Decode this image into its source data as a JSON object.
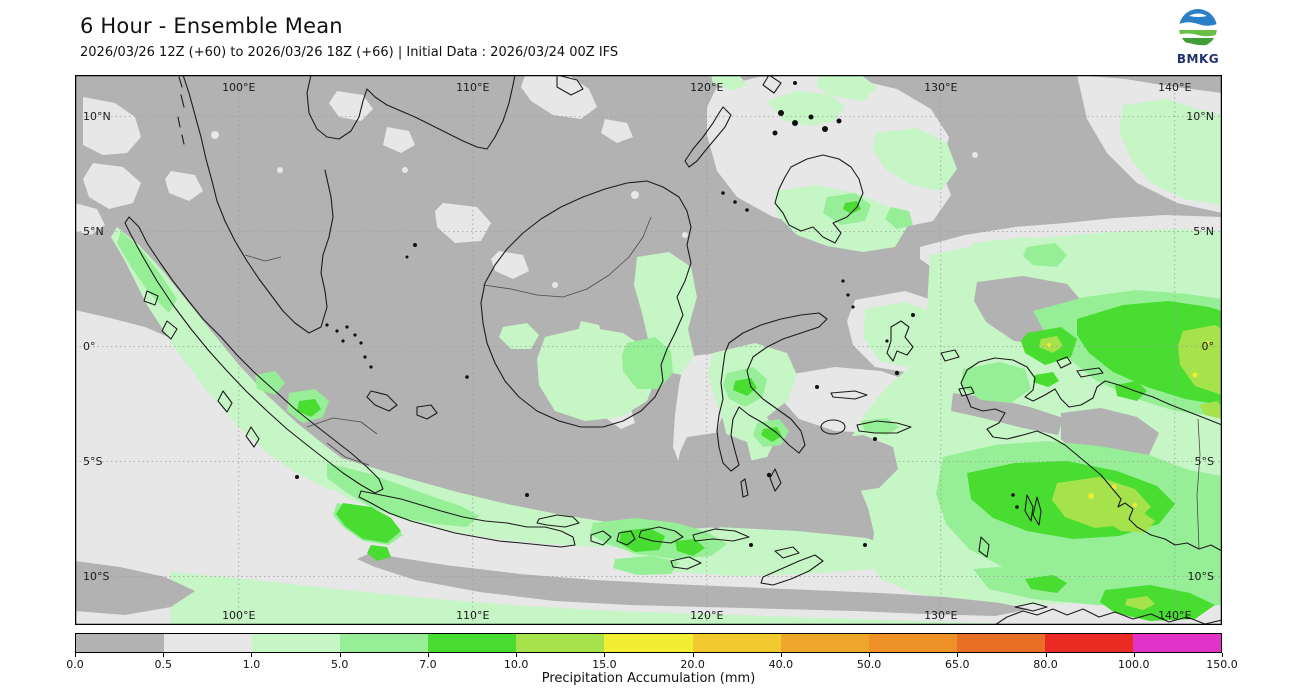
{
  "header": {
    "title": "6 Hour - Ensemble Mean",
    "subtitle": "2026/03/26 12Z (+60) to 2026/03/26 18Z (+66) | Initial Data : 2026/03/24 00Z IFS",
    "logo_text": "BMKG"
  },
  "map": {
    "top_lon_labels": [
      "100°E",
      "110°E",
      "120°E",
      "130°E",
      "140°E"
    ],
    "bottom_lon_labels": [
      "100°E",
      "110°E",
      "120°E",
      "130°E",
      "140°E"
    ],
    "left_lat_labels": [
      "10°N",
      "5°N",
      "0°",
      "5°S",
      "10°S"
    ],
    "right_lat_labels": [
      "10°N",
      "5°N",
      "0°",
      "5°S",
      "10°S"
    ]
  },
  "colorbar": {
    "label": "Precipitation Accumulation (mm)",
    "ticks": [
      "0.0",
      "0.5",
      "1.0",
      "5.0",
      "7.0",
      "10.0",
      "15.0",
      "20.0",
      "40.0",
      "50.0",
      "65.0",
      "80.0",
      "100.0",
      "150.0"
    ],
    "segment_colors": [
      "#b3b3b3",
      "#e7e7e7",
      "#c6f5c6",
      "#96ef96",
      "#48dd30",
      "#a6e24c",
      "#f1ee33",
      "#f2c92e",
      "#efa62a",
      "#ee9228",
      "#e87026",
      "#ea2b24",
      "#e233c8"
    ]
  },
  "chart_data": {
    "type": "heatmap",
    "title": "6 Hour - Ensemble Mean",
    "subtitle": "2026/03/26 12Z (+60) to 2026/03/26 18Z (+66) | Initial Data : 2026/03/24 00Z IFS",
    "variable": "Precipitation Accumulation (mm)",
    "scale_breakpoints_mm": [
      0.0,
      0.5,
      1.0,
      5.0,
      7.0,
      10.0,
      15.0,
      20.0,
      40.0,
      50.0,
      65.0,
      80.0,
      100.0,
      150.0
    ],
    "scale_colors": [
      "#b3b3b3",
      "#e7e7e7",
      "#c6f5c6",
      "#96ef96",
      "#48dd30",
      "#a6e24c",
      "#f1ee33",
      "#f2c92e",
      "#efa62a",
      "#ee9228",
      "#e87026",
      "#ea2b24",
      "#e233c8"
    ],
    "x_ticks": [
      "100°E",
      "110°E",
      "120°E",
      "130°E",
      "140°E"
    ],
    "y_ticks": [
      "10°N",
      "5°N",
      "0°",
      "5°S",
      "10°S"
    ],
    "legend_position": "bottom",
    "region": "Indonesia / Maritime Continent"
  }
}
